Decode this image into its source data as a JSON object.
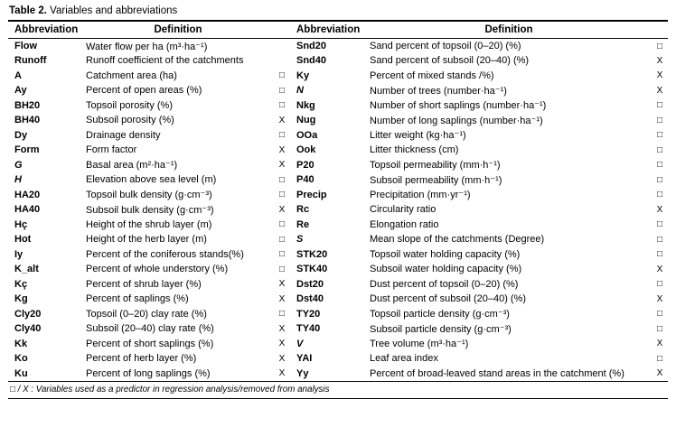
{
  "title": {
    "label": "Table 2.",
    "caption": "Variables and abbreviations"
  },
  "header": {
    "abbr_left": "Abbreviation",
    "def_left": "Definition",
    "abbr_right": "Abbreviation",
    "def_right": "Definition"
  },
  "rows": [
    {
      "left": {
        "abbr": "Flow",
        "italic": false,
        "def": "Water flow per ha (m³·ha⁻¹)",
        "mark": ""
      },
      "right": {
        "abbr": "Snd20",
        "italic": false,
        "def": "Sand percent of topsoil (0–20) (%)",
        "mark": "□"
      }
    },
    {
      "left": {
        "abbr": "Runoff",
        "italic": false,
        "def": "Runoff coefficient of the catchments",
        "mark": ""
      },
      "right": {
        "abbr": "Snd40",
        "italic": false,
        "def": "Sand percent of subsoil (20–40) (%)",
        "mark": "X"
      }
    },
    {
      "left": {
        "abbr": "A",
        "italic": false,
        "def": "Catchment area (ha)",
        "mark": "□"
      },
      "right": {
        "abbr": "Ky",
        "italic": false,
        "def": "Percent of mixed stands /%)",
        "mark": "X"
      }
    },
    {
      "left": {
        "abbr": "Ay",
        "italic": false,
        "def": "Percent of open areas (%)",
        "mark": "□"
      },
      "right": {
        "abbr": "N",
        "italic": true,
        "def": "Number of trees (number·ha⁻¹)",
        "mark": "X"
      }
    },
    {
      "left": {
        "abbr": "BH20",
        "italic": false,
        "def": "Topsoil porosity (%)",
        "mark": "□"
      },
      "right": {
        "abbr": "Nkg",
        "italic": false,
        "def": "Number of short saplings (number·ha⁻¹)",
        "mark": "□"
      }
    },
    {
      "left": {
        "abbr": "BH40",
        "italic": false,
        "def": "Subsoil porosity (%)",
        "mark": "X"
      },
      "right": {
        "abbr": "Nug",
        "italic": false,
        "def": "Number of long saplings (number·ha⁻¹)",
        "mark": "□"
      }
    },
    {
      "left": {
        "abbr": "Dy",
        "italic": false,
        "def": "Drainage density",
        "mark": "□"
      },
      "right": {
        "abbr": "OOa",
        "italic": false,
        "def": "Litter weight (kg·ha⁻¹)",
        "mark": "□"
      }
    },
    {
      "left": {
        "abbr": "Form",
        "italic": false,
        "def": "Form factor",
        "mark": "X"
      },
      "right": {
        "abbr": "Ook",
        "italic": false,
        "def": "Litter thickness (cm)",
        "mark": "□"
      }
    },
    {
      "left": {
        "abbr": "G",
        "italic": true,
        "def": "Basal area (m²·ha⁻¹)",
        "mark": "X"
      },
      "right": {
        "abbr": "P20",
        "italic": false,
        "def": "Topsoil permeability (mm·h⁻¹)",
        "mark": "□"
      }
    },
    {
      "left": {
        "abbr": "H",
        "italic": true,
        "def": "Elevation above sea level (m)",
        "mark": "□"
      },
      "right": {
        "abbr": "P40",
        "italic": false,
        "def": "Subsoil permeability (mm·h⁻¹)",
        "mark": "□"
      }
    },
    {
      "left": {
        "abbr": "HA20",
        "italic": false,
        "def": "Topsoil bulk density (g·cm⁻³)",
        "mark": "□"
      },
      "right": {
        "abbr": "Precip",
        "italic": false,
        "def": "Precipitation (mm·yr⁻¹)",
        "mark": "□"
      }
    },
    {
      "left": {
        "abbr": "HA40",
        "italic": false,
        "def": "Subsoil bulk density (g·cm⁻³)",
        "mark": "X"
      },
      "right": {
        "abbr": "Rc",
        "italic": false,
        "def": "Circularity ratio",
        "mark": "X"
      }
    },
    {
      "left": {
        "abbr": "Hç",
        "italic": false,
        "def": "Height of the shrub layer (m)",
        "mark": "□"
      },
      "right": {
        "abbr": "Re",
        "italic": false,
        "def": "Elongation ratio",
        "mark": "□"
      }
    },
    {
      "left": {
        "abbr": "Hot",
        "italic": false,
        "def": "Height of the herb layer (m)",
        "mark": "□"
      },
      "right": {
        "abbr": "S",
        "italic": true,
        "def": "Mean slope of the catchments (Degree)",
        "mark": "□"
      }
    },
    {
      "left": {
        "abbr": "Iy",
        "italic": false,
        "def": "Percent of the coniferous stands(%)",
        "mark": "□"
      },
      "right": {
        "abbr": "STK20",
        "italic": false,
        "def": "Topsoil water holding capacity (%)",
        "mark": "□"
      }
    },
    {
      "left": {
        "abbr": "K_alt",
        "italic": false,
        "def": "Percent of whole understory (%)",
        "mark": "□"
      },
      "right": {
        "abbr": "STK40",
        "italic": false,
        "def": "Subsoil water holding capacity (%)",
        "mark": "X"
      }
    },
    {
      "left": {
        "abbr": "Kç",
        "italic": false,
        "def": "Percent of shrub layer (%)",
        "mark": "X"
      },
      "right": {
        "abbr": "Dst20",
        "italic": false,
        "def": "Dust percent of topsoil (0–20) (%)",
        "mark": "□"
      }
    },
    {
      "left": {
        "abbr": "Kg",
        "italic": false,
        "def": "Percent of saplings (%)",
        "mark": "X"
      },
      "right": {
        "abbr": "Dst40",
        "italic": false,
        "def": "Dust percent of subsoil (20–40) (%)",
        "mark": "X"
      }
    },
    {
      "left": {
        "abbr": "Cly20",
        "italic": false,
        "def": "Topsoil (0–20) clay rate (%)",
        "mark": "□"
      },
      "right": {
        "abbr": "TY20",
        "italic": false,
        "def": "Topsoil particle density (g·cm⁻³)",
        "mark": "□"
      }
    },
    {
      "left": {
        "abbr": "Cly40",
        "italic": false,
        "def": "Subsoil (20–40) clay rate (%)",
        "mark": "X"
      },
      "right": {
        "abbr": "TY40",
        "italic": false,
        "def": "Subsoil particle density (g·cm⁻³)",
        "mark": "□"
      }
    },
    {
      "left": {
        "abbr": "Kk",
        "italic": false,
        "def": "Percent of short saplings (%)",
        "mark": "X"
      },
      "right": {
        "abbr": "V",
        "italic": true,
        "def": "Tree volume (m³·ha⁻¹)",
        "mark": "X"
      }
    },
    {
      "left": {
        "abbr": "Ko",
        "italic": false,
        "def": "Percent of herb layer (%)",
        "mark": "X"
      },
      "right": {
        "abbr": "YAI",
        "italic": false,
        "def": "Leaf area index",
        "mark": "□"
      }
    },
    {
      "left": {
        "abbr": "Ku",
        "italic": false,
        "def": "Percent of long saplings (%)",
        "mark": "X"
      },
      "right": {
        "abbr": "Yy",
        "italic": false,
        "def": "Percent of broad-leaved stand areas in the catchment (%)",
        "mark": "X"
      }
    }
  ],
  "footnote": "□ / X : Variables used as a predictor in regression analysis/removed from analysis"
}
